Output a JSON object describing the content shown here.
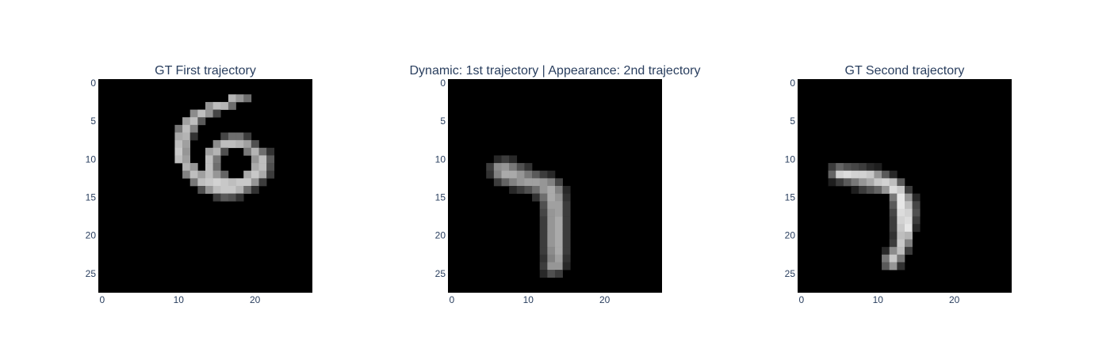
{
  "chart_data": [
    {
      "type": "heatmap",
      "title": "GT First trajectory",
      "colorscale": "gray",
      "zlim": [
        0,
        255
      ],
      "xlim": [
        0,
        27
      ],
      "ylim": [
        27,
        0
      ],
      "x_ticks": [
        0,
        10,
        20
      ],
      "y_ticks": [
        0,
        5,
        10,
        15,
        20,
        25
      ],
      "pixels": [
        [
          2,
          17,
          180
        ],
        [
          2,
          18,
          150
        ],
        [
          2,
          19,
          110
        ],
        [
          3,
          14,
          150
        ],
        [
          3,
          15,
          190
        ],
        [
          3,
          16,
          180
        ],
        [
          3,
          17,
          110
        ],
        [
          4,
          12,
          140
        ],
        [
          4,
          13,
          190
        ],
        [
          4,
          14,
          150
        ],
        [
          4,
          15,
          70
        ],
        [
          5,
          11,
          160
        ],
        [
          5,
          12,
          190
        ],
        [
          5,
          13,
          90
        ],
        [
          6,
          10,
          120
        ],
        [
          6,
          11,
          190
        ],
        [
          6,
          12,
          130
        ],
        [
          7,
          10,
          170
        ],
        [
          7,
          11,
          180
        ],
        [
          7,
          12,
          50
        ],
        [
          7,
          16,
          70
        ],
        [
          7,
          17,
          110
        ],
        [
          7,
          18,
          110
        ],
        [
          7,
          19,
          60
        ],
        [
          8,
          10,
          190
        ],
        [
          8,
          11,
          160
        ],
        [
          8,
          15,
          140
        ],
        [
          8,
          16,
          190
        ],
        [
          8,
          17,
          190
        ],
        [
          8,
          18,
          180
        ],
        [
          8,
          19,
          160
        ],
        [
          8,
          20,
          80
        ],
        [
          9,
          10,
          200
        ],
        [
          9,
          11,
          150
        ],
        [
          9,
          14,
          160
        ],
        [
          9,
          15,
          180
        ],
        [
          9,
          16,
          80
        ],
        [
          9,
          19,
          120
        ],
        [
          9,
          20,
          180
        ],
        [
          9,
          21,
          110
        ],
        [
          9,
          22,
          50
        ],
        [
          10,
          10,
          190
        ],
        [
          10,
          11,
          160
        ],
        [
          10,
          14,
          190
        ],
        [
          10,
          15,
          120
        ],
        [
          10,
          20,
          150
        ],
        [
          10,
          21,
          190
        ],
        [
          10,
          22,
          90
        ],
        [
          11,
          11,
          180
        ],
        [
          11,
          12,
          150
        ],
        [
          11,
          14,
          190
        ],
        [
          11,
          15,
          110
        ],
        [
          11,
          20,
          170
        ],
        [
          11,
          21,
          190
        ],
        [
          11,
          22,
          80
        ],
        [
          12,
          11,
          130
        ],
        [
          12,
          12,
          190
        ],
        [
          12,
          13,
          160
        ],
        [
          12,
          14,
          190
        ],
        [
          12,
          15,
          150
        ],
        [
          12,
          16,
          100
        ],
        [
          12,
          19,
          170
        ],
        [
          12,
          20,
          200
        ],
        [
          12,
          21,
          170
        ],
        [
          12,
          22,
          60
        ],
        [
          13,
          12,
          120
        ],
        [
          13,
          13,
          190
        ],
        [
          13,
          14,
          200
        ],
        [
          13,
          15,
          210
        ],
        [
          13,
          16,
          200
        ],
        [
          13,
          17,
          190
        ],
        [
          13,
          18,
          200
        ],
        [
          13,
          19,
          200
        ],
        [
          13,
          20,
          150
        ],
        [
          13,
          21,
          60
        ],
        [
          14,
          13,
          80
        ],
        [
          14,
          14,
          150
        ],
        [
          14,
          15,
          190
        ],
        [
          14,
          16,
          200
        ],
        [
          14,
          17,
          200
        ],
        [
          14,
          18,
          180
        ],
        [
          14,
          19,
          110
        ],
        [
          14,
          20,
          50
        ],
        [
          15,
          15,
          60
        ],
        [
          15,
          16,
          90
        ],
        [
          15,
          17,
          80
        ],
        [
          15,
          18,
          50
        ]
      ]
    },
    {
      "type": "heatmap",
      "title": "Dynamic: 1st trajectory | Appearance: 2nd trajectory",
      "colorscale": "gray",
      "zlim": [
        0,
        255
      ],
      "xlim": [
        0,
        27
      ],
      "ylim": [
        27,
        0
      ],
      "x_ticks": [
        0,
        10,
        20
      ],
      "y_ticks": [
        0,
        5,
        10,
        15,
        20,
        25
      ],
      "pixels": [
        [
          10,
          6,
          40
        ],
        [
          10,
          7,
          60
        ],
        [
          10,
          8,
          40
        ],
        [
          11,
          5,
          60
        ],
        [
          11,
          6,
          140
        ],
        [
          11,
          7,
          150
        ],
        [
          11,
          8,
          120
        ],
        [
          11,
          9,
          80
        ],
        [
          11,
          10,
          50
        ],
        [
          12,
          5,
          50
        ],
        [
          12,
          6,
          130
        ],
        [
          12,
          7,
          170
        ],
        [
          12,
          8,
          170
        ],
        [
          12,
          9,
          150
        ],
        [
          12,
          10,
          120
        ],
        [
          12,
          11,
          90
        ],
        [
          12,
          12,
          60
        ],
        [
          12,
          13,
          40
        ],
        [
          13,
          6,
          60
        ],
        [
          13,
          7,
          100
        ],
        [
          13,
          8,
          130
        ],
        [
          13,
          9,
          150
        ],
        [
          13,
          10,
          160
        ],
        [
          13,
          11,
          160
        ],
        [
          13,
          12,
          150
        ],
        [
          13,
          13,
          130
        ],
        [
          13,
          14,
          70
        ],
        [
          14,
          8,
          40
        ],
        [
          14,
          9,
          60
        ],
        [
          14,
          10,
          80
        ],
        [
          14,
          11,
          110
        ],
        [
          14,
          12,
          150
        ],
        [
          14,
          13,
          170
        ],
        [
          14,
          14,
          130
        ],
        [
          14,
          15,
          40
        ],
        [
          15,
          11,
          50
        ],
        [
          15,
          12,
          110
        ],
        [
          15,
          13,
          170
        ],
        [
          15,
          14,
          150
        ],
        [
          15,
          15,
          50
        ],
        [
          16,
          12,
          80
        ],
        [
          16,
          13,
          160
        ],
        [
          16,
          14,
          160
        ],
        [
          16,
          15,
          60
        ],
        [
          17,
          12,
          70
        ],
        [
          17,
          13,
          150
        ],
        [
          17,
          14,
          160
        ],
        [
          17,
          15,
          60
        ],
        [
          18,
          12,
          60
        ],
        [
          18,
          13,
          150
        ],
        [
          18,
          14,
          170
        ],
        [
          18,
          15,
          60
        ],
        [
          19,
          12,
          60
        ],
        [
          19,
          13,
          150
        ],
        [
          19,
          14,
          170
        ],
        [
          19,
          15,
          60
        ],
        [
          20,
          12,
          60
        ],
        [
          20,
          13,
          150
        ],
        [
          20,
          14,
          170
        ],
        [
          20,
          15,
          60
        ],
        [
          21,
          12,
          60
        ],
        [
          21,
          13,
          150
        ],
        [
          21,
          14,
          170
        ],
        [
          21,
          15,
          60
        ],
        [
          22,
          12,
          60
        ],
        [
          22,
          13,
          140
        ],
        [
          22,
          14,
          170
        ],
        [
          22,
          15,
          60
        ],
        [
          23,
          12,
          50
        ],
        [
          23,
          13,
          130
        ],
        [
          23,
          14,
          160
        ],
        [
          23,
          15,
          50
        ],
        [
          24,
          12,
          60
        ],
        [
          24,
          13,
          150
        ],
        [
          24,
          14,
          150
        ],
        [
          24,
          15,
          40
        ],
        [
          25,
          12,
          40
        ],
        [
          25,
          13,
          80
        ],
        [
          25,
          14,
          60
        ]
      ]
    },
    {
      "type": "heatmap",
      "title": "GT Second trajectory",
      "colorscale": "gray",
      "zlim": [
        0,
        255
      ],
      "xlim": [
        0,
        27
      ],
      "ylim": [
        27,
        0
      ],
      "x_ticks": [
        0,
        10,
        20
      ],
      "y_ticks": [
        0,
        5,
        10,
        15,
        20,
        25
      ],
      "pixels": [
        [
          11,
          4,
          60
        ],
        [
          11,
          5,
          100
        ],
        [
          11,
          6,
          80
        ],
        [
          11,
          7,
          70
        ],
        [
          11,
          8,
          60
        ],
        [
          11,
          9,
          40
        ],
        [
          11,
          10,
          30
        ],
        [
          12,
          4,
          100
        ],
        [
          12,
          5,
          210
        ],
        [
          12,
          6,
          220
        ],
        [
          12,
          7,
          210
        ],
        [
          12,
          8,
          210
        ],
        [
          12,
          9,
          200
        ],
        [
          12,
          10,
          150
        ],
        [
          12,
          11,
          90
        ],
        [
          12,
          12,
          40
        ],
        [
          13,
          4,
          30
        ],
        [
          13,
          5,
          60
        ],
        [
          13,
          6,
          90
        ],
        [
          13,
          7,
          120
        ],
        [
          13,
          8,
          150
        ],
        [
          13,
          9,
          170
        ],
        [
          13,
          10,
          200
        ],
        [
          13,
          11,
          210
        ],
        [
          13,
          12,
          190
        ],
        [
          13,
          13,
          90
        ],
        [
          14,
          7,
          30
        ],
        [
          14,
          8,
          60
        ],
        [
          14,
          9,
          80
        ],
        [
          14,
          10,
          100
        ],
        [
          14,
          11,
          150
        ],
        [
          14,
          12,
          220
        ],
        [
          14,
          13,
          200
        ],
        [
          14,
          14,
          60
        ],
        [
          15,
          12,
          120
        ],
        [
          15,
          13,
          230
        ],
        [
          15,
          14,
          150
        ],
        [
          15,
          15,
          40
        ],
        [
          16,
          12,
          90
        ],
        [
          16,
          13,
          230
        ],
        [
          16,
          14,
          190
        ],
        [
          16,
          15,
          70
        ],
        [
          17,
          12,
          70
        ],
        [
          17,
          13,
          220
        ],
        [
          17,
          14,
          210
        ],
        [
          17,
          15,
          80
        ],
        [
          18,
          12,
          60
        ],
        [
          18,
          13,
          210
        ],
        [
          18,
          14,
          220
        ],
        [
          18,
          15,
          60
        ],
        [
          19,
          12,
          60
        ],
        [
          19,
          13,
          200
        ],
        [
          19,
          14,
          230
        ],
        [
          19,
          15,
          40
        ],
        [
          20,
          12,
          50
        ],
        [
          20,
          13,
          190
        ],
        [
          20,
          14,
          180
        ],
        [
          21,
          12,
          60
        ],
        [
          21,
          13,
          200
        ],
        [
          21,
          14,
          130
        ],
        [
          22,
          11,
          40
        ],
        [
          22,
          12,
          140
        ],
        [
          22,
          13,
          190
        ],
        [
          22,
          14,
          60
        ],
        [
          23,
          11,
          120
        ],
        [
          23,
          12,
          200
        ],
        [
          23,
          13,
          120
        ],
        [
          24,
          11,
          90
        ],
        [
          24,
          12,
          150
        ],
        [
          24,
          13,
          50
        ]
      ]
    }
  ]
}
